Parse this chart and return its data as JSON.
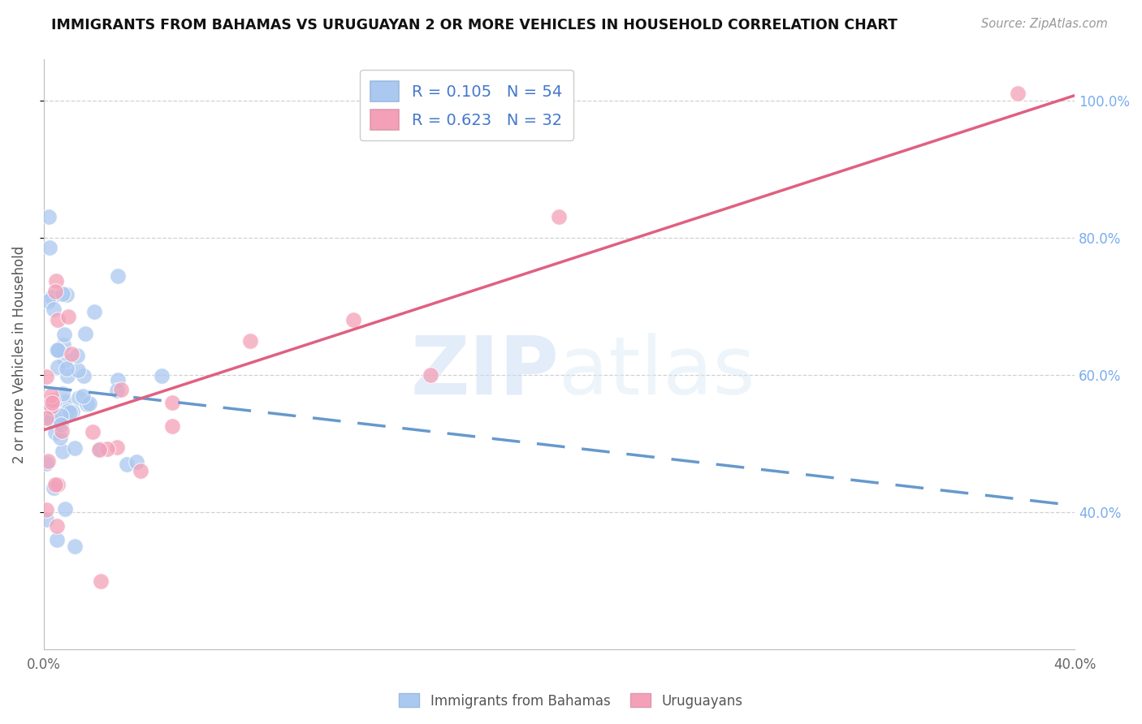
{
  "title": "IMMIGRANTS FROM BAHAMAS VS URUGUAYAN 2 OR MORE VEHICLES IN HOUSEHOLD CORRELATION CHART",
  "source": "Source: ZipAtlas.com",
  "ylabel": "2 or more Vehicles in Household",
  "legend_label1": "Immigrants from Bahamas",
  "legend_label2": "Uruguayans",
  "legend_R1": "0.105",
  "legend_N1": "54",
  "legend_R2": "0.623",
  "legend_N2": "32",
  "color_blue": "#aac8f0",
  "color_pink": "#f4a0b8",
  "line_color_blue": "#6699cc",
  "line_color_pink": "#e06080",
  "watermark_zip": "ZIP",
  "watermark_atlas": "atlas",
  "x_min": 0.0,
  "x_max": 0.4,
  "y_min": 0.2,
  "y_max": 1.06,
  "right_ytick_labels": [
    "40.0%",
    "60.0%",
    "80.0%",
    "100.0%"
  ],
  "right_ytick_vals": [
    0.4,
    0.6,
    0.8,
    1.0
  ],
  "text_color_blue": "#4477cc",
  "text_color_right": "#7aadee"
}
